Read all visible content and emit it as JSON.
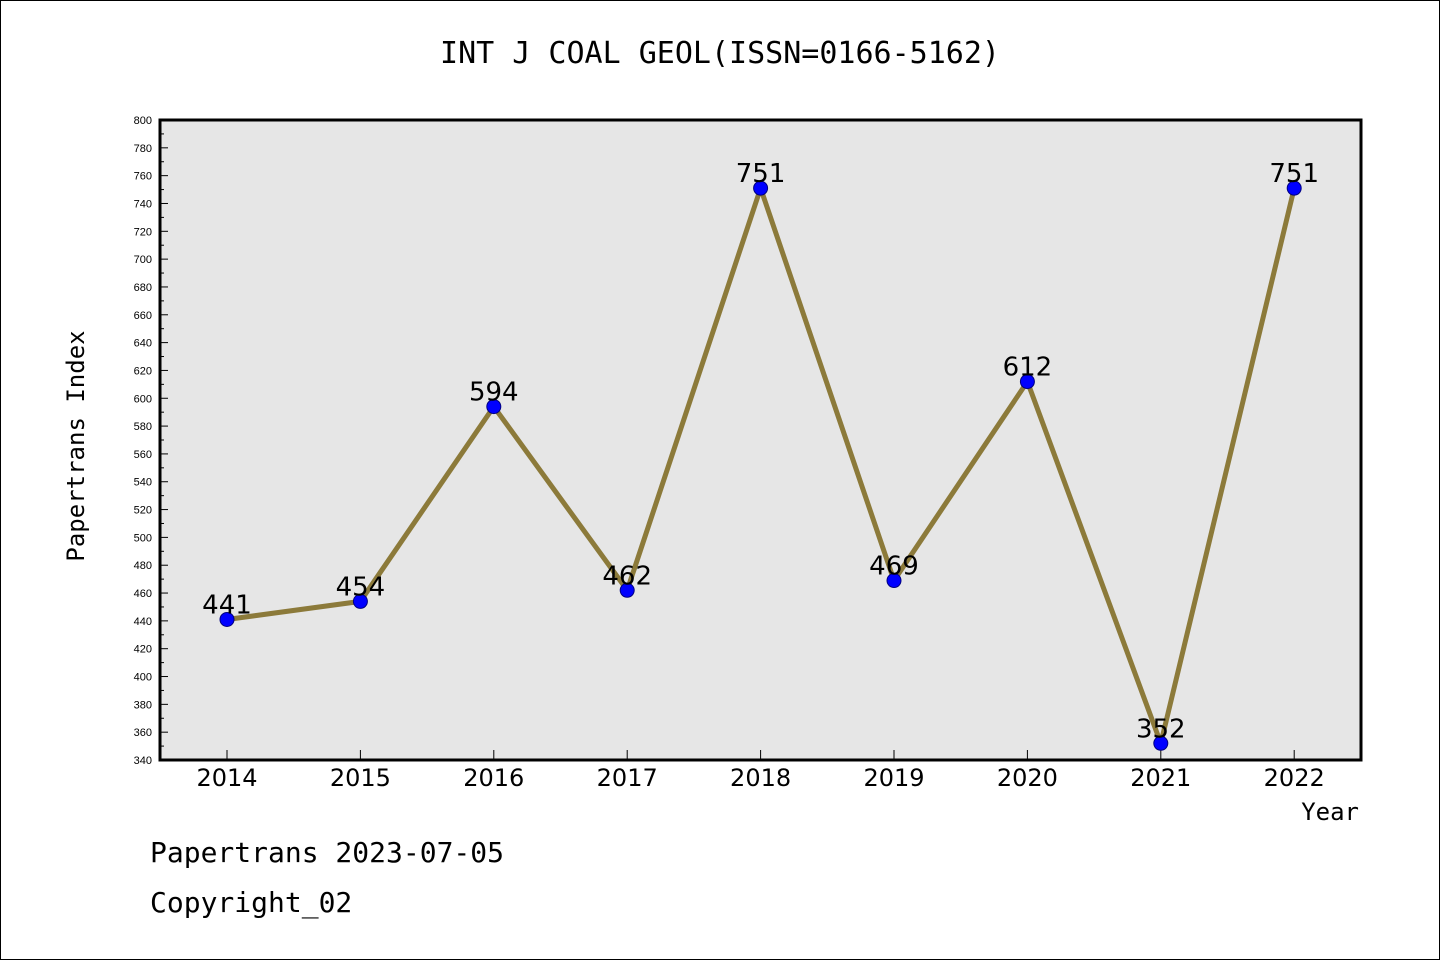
{
  "chart_data": {
    "type": "line",
    "title": "INT J COAL GEOL(ISSN=0166-5162)",
    "xlabel": "Year",
    "ylabel": "Papertrans Index",
    "categories": [
      "2014",
      "2015",
      "2016",
      "2017",
      "2018",
      "2019",
      "2020",
      "2021",
      "2022"
    ],
    "series": [
      {
        "values": [
          441,
          454,
          594,
          462,
          751,
          469,
          612,
          352,
          751
        ]
      }
    ],
    "data_labels": [
      "441",
      "454",
      "594",
      "462",
      "751",
      "469",
      "612",
      "352",
      "751"
    ],
    "ylim": [
      340,
      800
    ],
    "y_ticks": [
      "340",
      "360",
      "380",
      "400",
      "420",
      "440",
      "460",
      "480",
      "500",
      "520",
      "540",
      "560",
      "580",
      "600",
      "620",
      "640",
      "660",
      "680",
      "700",
      "720",
      "740",
      "760",
      "780",
      "800"
    ],
    "grid": false,
    "colors": {
      "line": "#8c7a3a",
      "marker": "#0000ff",
      "plot_background": "#e6e6e6"
    }
  },
  "footer": {
    "date_text": "Papertrans 2023-07-05",
    "copyright_text": "Copyright_02"
  }
}
